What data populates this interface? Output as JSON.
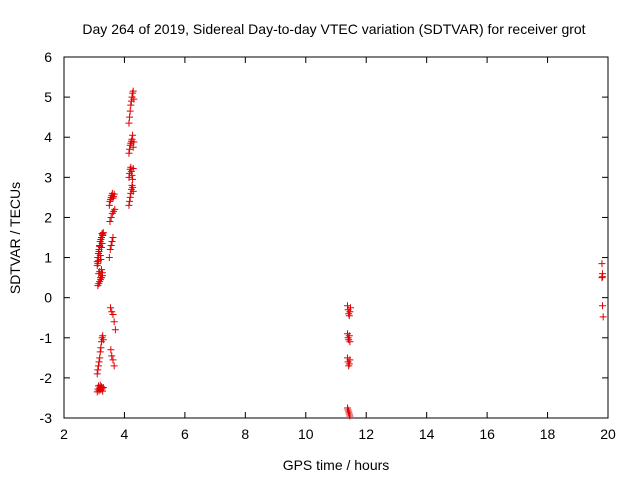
{
  "chart_data": {
    "type": "scatter",
    "title": "Day 264 of 2019, Sidereal Day-to-day VTEC variation (SDTVAR) for receiver grot",
    "xlabel": "GPS time / hours",
    "ylabel": "SDTVAR / TECUs",
    "xlim": [
      2,
      20
    ],
    "ylim": [
      -3,
      6
    ],
    "xticks": [
      2,
      4,
      6,
      8,
      10,
      12,
      14,
      16,
      18,
      20
    ],
    "yticks": [
      -3,
      -2,
      -1,
      0,
      1,
      2,
      3,
      4,
      5,
      6
    ],
    "grid": false,
    "marker": "+",
    "color": "#e00000",
    "series": [
      {
        "name": "SDTVAR",
        "x": [
          3.1,
          3.12,
          3.14,
          3.16,
          3.18,
          3.2,
          3.22,
          3.24,
          3.26,
          3.28,
          3.3,
          3.1,
          3.12,
          3.14,
          3.16,
          3.18,
          3.2,
          3.22,
          3.24,
          3.26,
          3.28,
          3.3,
          3.12,
          3.15,
          3.18,
          3.21,
          3.24,
          3.27,
          3.15,
          3.18,
          3.21,
          3.24,
          3.27,
          3.1,
          3.12,
          3.14,
          3.16,
          3.18,
          3.2,
          3.22,
          3.24,
          3.26,
          3.28,
          3.3,
          3.1,
          3.12,
          3.14,
          3.16,
          3.18,
          3.2,
          3.22,
          3.24,
          3.26,
          3.28,
          3.5,
          3.52,
          3.54,
          3.56,
          3.58,
          3.6,
          3.62,
          3.64,
          3.66,
          3.52,
          3.56,
          3.6,
          3.64,
          3.68,
          3.5,
          3.53,
          3.56,
          3.59,
          3.62,
          3.54,
          3.58,
          3.62,
          3.66,
          3.7,
          3.55,
          3.58,
          3.62,
          3.66,
          4.15,
          4.17,
          4.19,
          4.21,
          4.23,
          4.25,
          4.27,
          4.29,
          4.15,
          4.17,
          4.19,
          4.21,
          4.23,
          4.25,
          4.27,
          4.29,
          4.15,
          4.17,
          4.19,
          4.21,
          4.23,
          4.25,
          4.27,
          4.29,
          4.31,
          4.15,
          4.17,
          4.19,
          4.21,
          4.23,
          4.25,
          4.27,
          4.29,
          4.31,
          11.38,
          11.4,
          11.42,
          11.44,
          11.46,
          11.48,
          11.38,
          11.4,
          11.42,
          11.44,
          11.46,
          11.38,
          11.4,
          11.42,
          11.44,
          11.46,
          11.38,
          11.4,
          11.42,
          11.44,
          11.46,
          19.8,
          19.82,
          19.8,
          19.82,
          19.84,
          19.82
        ],
        "y": [
          -2.35,
          -2.28,
          -2.2,
          -2.32,
          -2.25,
          -2.18,
          -2.3,
          -2.22,
          -2.27,
          -2.33,
          -2.24,
          -1.9,
          -1.8,
          -1.7,
          -1.6,
          -1.5,
          -1.35,
          -1.25,
          -1.1,
          -1.0,
          -0.95,
          -1.05,
          0.3,
          0.35,
          0.4,
          0.45,
          0.5,
          0.55,
          0.6,
          0.65,
          0.5,
          0.7,
          0.62,
          0.9,
          1.0,
          1.1,
          1.2,
          1.3,
          1.05,
          0.95,
          1.25,
          1.35,
          1.55,
          1.62,
          0.8,
          0.85,
          0.92,
          1.15,
          1.28,
          1.4,
          1.45,
          1.5,
          1.6,
          1.58,
          2.3,
          2.4,
          2.45,
          2.5,
          2.55,
          2.6,
          2.48,
          2.52,
          2.58,
          1.9,
          2.0,
          2.1,
          2.15,
          2.2,
          1.0,
          1.2,
          1.3,
          1.4,
          1.5,
          -0.25,
          -0.35,
          -0.42,
          -0.6,
          -0.8,
          -1.3,
          -1.45,
          -1.55,
          -1.7,
          2.3,
          2.4,
          2.5,
          2.6,
          2.7,
          2.8,
          2.75,
          2.65,
          3.0,
          3.1,
          3.2,
          3.25,
          3.15,
          3.05,
          2.95,
          3.22,
          3.6,
          3.7,
          3.8,
          3.85,
          3.9,
          3.95,
          4.05,
          3.75,
          3.88,
          4.35,
          4.5,
          4.65,
          4.8,
          4.9,
          5.0,
          5.1,
          5.15,
          4.95,
          -0.2,
          -0.3,
          -0.4,
          -0.45,
          -0.35,
          -0.25,
          -0.9,
          -1.0,
          -1.05,
          -0.95,
          -1.1,
          -1.5,
          -1.6,
          -1.7,
          -1.65,
          -1.55,
          -2.75,
          -2.8,
          -2.85,
          -2.9,
          -2.95,
          0.85,
          0.6,
          0.5,
          -0.2,
          -0.48,
          0.52
        ]
      }
    ]
  }
}
